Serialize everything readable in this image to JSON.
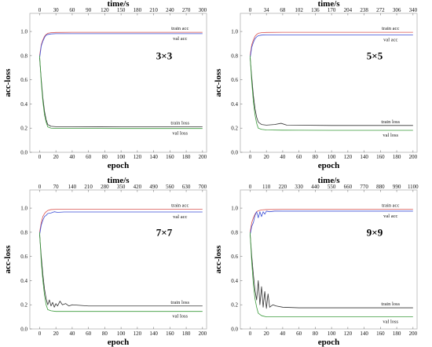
{
  "chart_data": [
    {
      "type": "line",
      "panel_label": "3×3",
      "xlabel": "epoch",
      "ylabel": "acc-loss",
      "x2label": "time/s",
      "xticks": [
        0,
        20,
        40,
        60,
        80,
        100,
        120,
        140,
        160,
        180,
        200
      ],
      "x2ticks": [
        0,
        30,
        60,
        90,
        120,
        150,
        180,
        210,
        240,
        270,
        300
      ],
      "yticks": [
        0.0,
        0.2,
        0.4,
        0.6,
        0.8,
        1.0
      ],
      "xlim": [
        -12,
        205
      ],
      "ylim": [
        0,
        1.15
      ],
      "x2lim": [
        -18,
        307.5
      ],
      "series": [
        {
          "name": "train acc",
          "color": "#d9534f",
          "x": [
            0,
            2,
            4,
            6,
            8,
            10,
            14,
            20,
            40,
            100,
            200
          ],
          "values": [
            0.8,
            0.89,
            0.93,
            0.96,
            0.975,
            0.985,
            0.99,
            0.992,
            0.993,
            0.993,
            0.993
          ]
        },
        {
          "name": "val acc",
          "color": "#3b4fd6",
          "x": [
            0,
            2,
            4,
            6,
            8,
            10,
            14,
            20,
            40,
            100,
            200
          ],
          "values": [
            0.78,
            0.88,
            0.92,
            0.95,
            0.97,
            0.975,
            0.98,
            0.982,
            0.982,
            0.982,
            0.982
          ]
        },
        {
          "name": "train loss",
          "color": "#333333",
          "x": [
            0,
            2,
            4,
            6,
            8,
            10,
            14,
            20,
            40,
            100,
            200
          ],
          "values": [
            0.78,
            0.6,
            0.45,
            0.34,
            0.27,
            0.23,
            0.215,
            0.212,
            0.212,
            0.211,
            0.211
          ]
        },
        {
          "name": "val loss",
          "color": "#3a9a3a",
          "x": [
            0,
            2,
            4,
            6,
            8,
            10,
            14,
            20,
            40,
            100,
            200
          ],
          "values": [
            0.8,
            0.58,
            0.42,
            0.31,
            0.25,
            0.21,
            0.2,
            0.198,
            0.198,
            0.197,
            0.197
          ]
        }
      ]
    },
    {
      "type": "line",
      "panel_label": "5×5",
      "xlabel": "epoch",
      "ylabel": "acc-loss",
      "x2label": "time/s",
      "xticks": [
        0,
        20,
        40,
        60,
        80,
        100,
        120,
        140,
        160,
        180,
        200
      ],
      "x2ticks": [
        0,
        34,
        68,
        102,
        136,
        170,
        204,
        238,
        272,
        306,
        340
      ],
      "yticks": [
        0.0,
        0.2,
        0.4,
        0.6,
        0.8,
        1.0
      ],
      "xlim": [
        -12,
        205
      ],
      "ylim": [
        0,
        1.15
      ],
      "x2lim": [
        -20.4,
        348.5
      ],
      "series": [
        {
          "name": "train acc",
          "color": "#d9534f",
          "x": [
            0,
            2,
            4,
            6,
            8,
            10,
            14,
            20,
            40,
            100,
            200
          ],
          "values": [
            0.8,
            0.89,
            0.93,
            0.96,
            0.975,
            0.985,
            0.99,
            0.992,
            0.993,
            0.993,
            0.993
          ]
        },
        {
          "name": "val acc",
          "color": "#3b4fd6",
          "x": [
            0,
            2,
            4,
            6,
            8,
            10,
            14,
            20,
            40,
            100,
            200
          ],
          "values": [
            0.78,
            0.87,
            0.91,
            0.94,
            0.955,
            0.965,
            0.97,
            0.972,
            0.972,
            0.972,
            0.972
          ]
        },
        {
          "name": "train loss",
          "color": "#333333",
          "x": [
            0,
            2,
            4,
            6,
            8,
            10,
            14,
            20,
            30,
            38,
            45,
            100,
            200
          ],
          "values": [
            0.78,
            0.62,
            0.47,
            0.36,
            0.29,
            0.25,
            0.23,
            0.225,
            0.23,
            0.24,
            0.225,
            0.222,
            0.222
          ]
        },
        {
          "name": "val loss",
          "color": "#3a9a3a",
          "x": [
            0,
            2,
            4,
            6,
            8,
            10,
            14,
            20,
            40,
            100,
            200
          ],
          "values": [
            0.8,
            0.58,
            0.42,
            0.31,
            0.24,
            0.2,
            0.19,
            0.185,
            0.183,
            0.182,
            0.182
          ]
        }
      ]
    },
    {
      "type": "line",
      "panel_label": "7×7",
      "xlabel": "epoch",
      "ylabel": "acc-loss",
      "x2label": "time/s",
      "xticks": [
        0,
        20,
        40,
        60,
        80,
        100,
        120,
        140,
        160,
        180,
        200
      ],
      "x2ticks": [
        0,
        70,
        140,
        210,
        280,
        350,
        420,
        490,
        560,
        630,
        700
      ],
      "yticks": [
        0.0,
        0.2,
        0.4,
        0.6,
        0.8,
        1.0
      ],
      "xlim": [
        -12,
        205
      ],
      "ylim": [
        0,
        1.15
      ],
      "x2lim": [
        -42,
        717.5
      ],
      "series": [
        {
          "name": "train acc",
          "color": "#d9534f",
          "x": [
            0,
            2,
            4,
            6,
            8,
            10,
            14,
            20,
            40,
            100,
            200
          ],
          "values": [
            0.8,
            0.88,
            0.93,
            0.955,
            0.97,
            0.98,
            0.988,
            0.99,
            0.991,
            0.991,
            0.991
          ]
        },
        {
          "name": "val acc",
          "color": "#3b4fd6",
          "x": [
            0,
            2,
            4,
            6,
            8,
            10,
            14,
            18,
            22,
            30,
            40,
            100,
            200
          ],
          "values": [
            0.78,
            0.86,
            0.9,
            0.93,
            0.94,
            0.955,
            0.96,
            0.97,
            0.965,
            0.968,
            0.968,
            0.968,
            0.968
          ]
        },
        {
          "name": "train loss",
          "color": "#333333",
          "x": [
            0,
            2,
            4,
            6,
            8,
            10,
            12,
            14,
            16,
            18,
            20,
            22,
            25,
            28,
            32,
            36,
            40,
            50,
            60,
            100,
            200
          ],
          "values": [
            0.78,
            0.6,
            0.45,
            0.33,
            0.25,
            0.2,
            0.24,
            0.19,
            0.22,
            0.18,
            0.21,
            0.19,
            0.23,
            0.2,
            0.21,
            0.19,
            0.2,
            0.195,
            0.19,
            0.19,
            0.19
          ]
        },
        {
          "name": "val loss",
          "color": "#3a9a3a",
          "x": [
            0,
            2,
            4,
            6,
            8,
            10,
            14,
            20,
            40,
            100,
            200
          ],
          "values": [
            0.8,
            0.56,
            0.4,
            0.28,
            0.2,
            0.16,
            0.15,
            0.145,
            0.145,
            0.145,
            0.145
          ]
        }
      ]
    },
    {
      "type": "line",
      "panel_label": "9×9",
      "xlabel": "epoch",
      "ylabel": "acc-loss",
      "x2label": "time/s",
      "xticks": [
        0,
        20,
        40,
        60,
        80,
        100,
        120,
        140,
        160,
        180,
        200
      ],
      "x2ticks": [
        0,
        110,
        220,
        330,
        440,
        550,
        660,
        770,
        880,
        990,
        1100
      ],
      "yticks": [
        0.0,
        0.2,
        0.4,
        0.6,
        0.8,
        1.0
      ],
      "xlim": [
        -12,
        205
      ],
      "ylim": [
        0,
        1.15
      ],
      "x2lim": [
        -66,
        1127.5
      ],
      "series": [
        {
          "name": "train acc",
          "color": "#d9534f",
          "x": [
            0,
            2,
            4,
            6,
            8,
            10,
            14,
            20,
            40,
            100,
            200
          ],
          "values": [
            0.8,
            0.88,
            0.92,
            0.95,
            0.97,
            0.978,
            0.985,
            0.988,
            0.99,
            0.99,
            0.99
          ]
        },
        {
          "name": "val acc",
          "color": "#3b4fd6",
          "x": [
            0,
            2,
            4,
            6,
            8,
            10,
            12,
            14,
            16,
            18,
            20,
            24,
            30,
            100,
            200
          ],
          "values": [
            0.78,
            0.85,
            0.88,
            0.94,
            0.97,
            0.92,
            0.97,
            0.93,
            0.97,
            0.95,
            0.975,
            0.97,
            0.975,
            0.975,
            0.975
          ]
        },
        {
          "name": "train loss",
          "color": "#333333",
          "x": [
            0,
            2,
            4,
            6,
            8,
            10,
            12,
            14,
            16,
            18,
            20,
            22,
            24,
            28,
            32,
            40,
            60,
            100,
            200
          ],
          "values": [
            0.78,
            0.6,
            0.45,
            0.32,
            0.24,
            0.4,
            0.2,
            0.35,
            0.18,
            0.31,
            0.17,
            0.29,
            0.18,
            0.2,
            0.19,
            0.18,
            0.175,
            0.175,
            0.175
          ]
        },
        {
          "name": "val loss",
          "color": "#3a9a3a",
          "x": [
            0,
            2,
            4,
            6,
            8,
            10,
            14,
            20,
            40,
            100,
            200
          ],
          "values": [
            0.8,
            0.55,
            0.37,
            0.25,
            0.18,
            0.13,
            0.11,
            0.1,
            0.1,
            0.1,
            0.1
          ]
        }
      ]
    }
  ]
}
